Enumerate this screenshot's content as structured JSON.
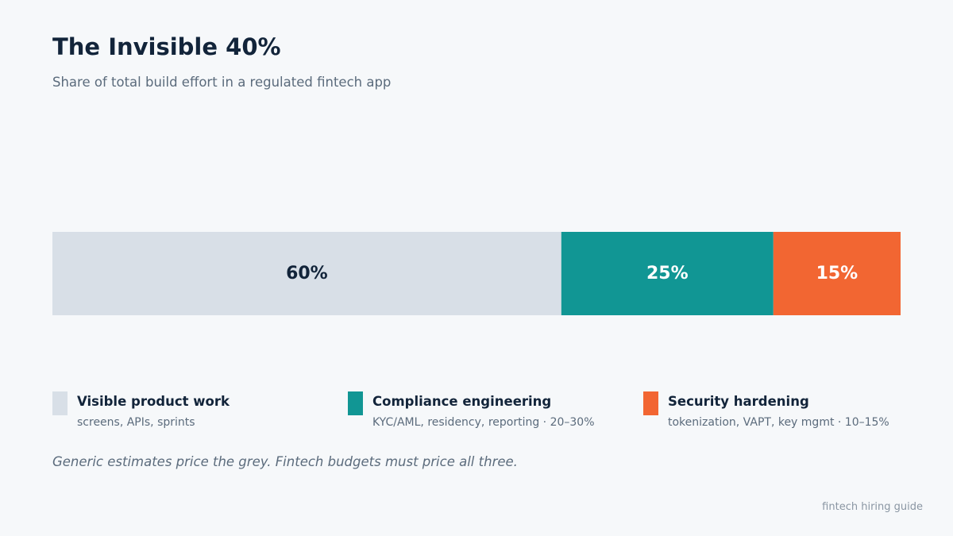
{
  "chart_data": {
    "type": "bar",
    "stacked": true,
    "orientation": "horizontal",
    "title": "The Invisible 40%",
    "subtitle": "Share of total build effort in a regulated fintech app",
    "series": [
      {
        "name": "Visible product work",
        "value": 60,
        "label": "60%",
        "detail": "screens, APIs, sprints",
        "color": "#d8dfe7",
        "label_color": "#12243a"
      },
      {
        "name": "Compliance engineering",
        "value": 25,
        "label": "25%",
        "detail": "KYC/AML, residency, reporting  ·  20–30%",
        "color": "#119694",
        "label_color": "#ffffff"
      },
      {
        "name": "Security hardening",
        "value": 15,
        "label": "15%",
        "detail": "tokenization, VAPT, key mgmt  ·  10–15%",
        "color": "#f26632",
        "label_color": "#ffffff"
      }
    ],
    "xlim": [
      0,
      100
    ],
    "grid": false,
    "legend_position": "bottom"
  },
  "footnote": "Generic estimates price the grey. Fintech budgets must price all three.",
  "source": "fintech hiring guide"
}
